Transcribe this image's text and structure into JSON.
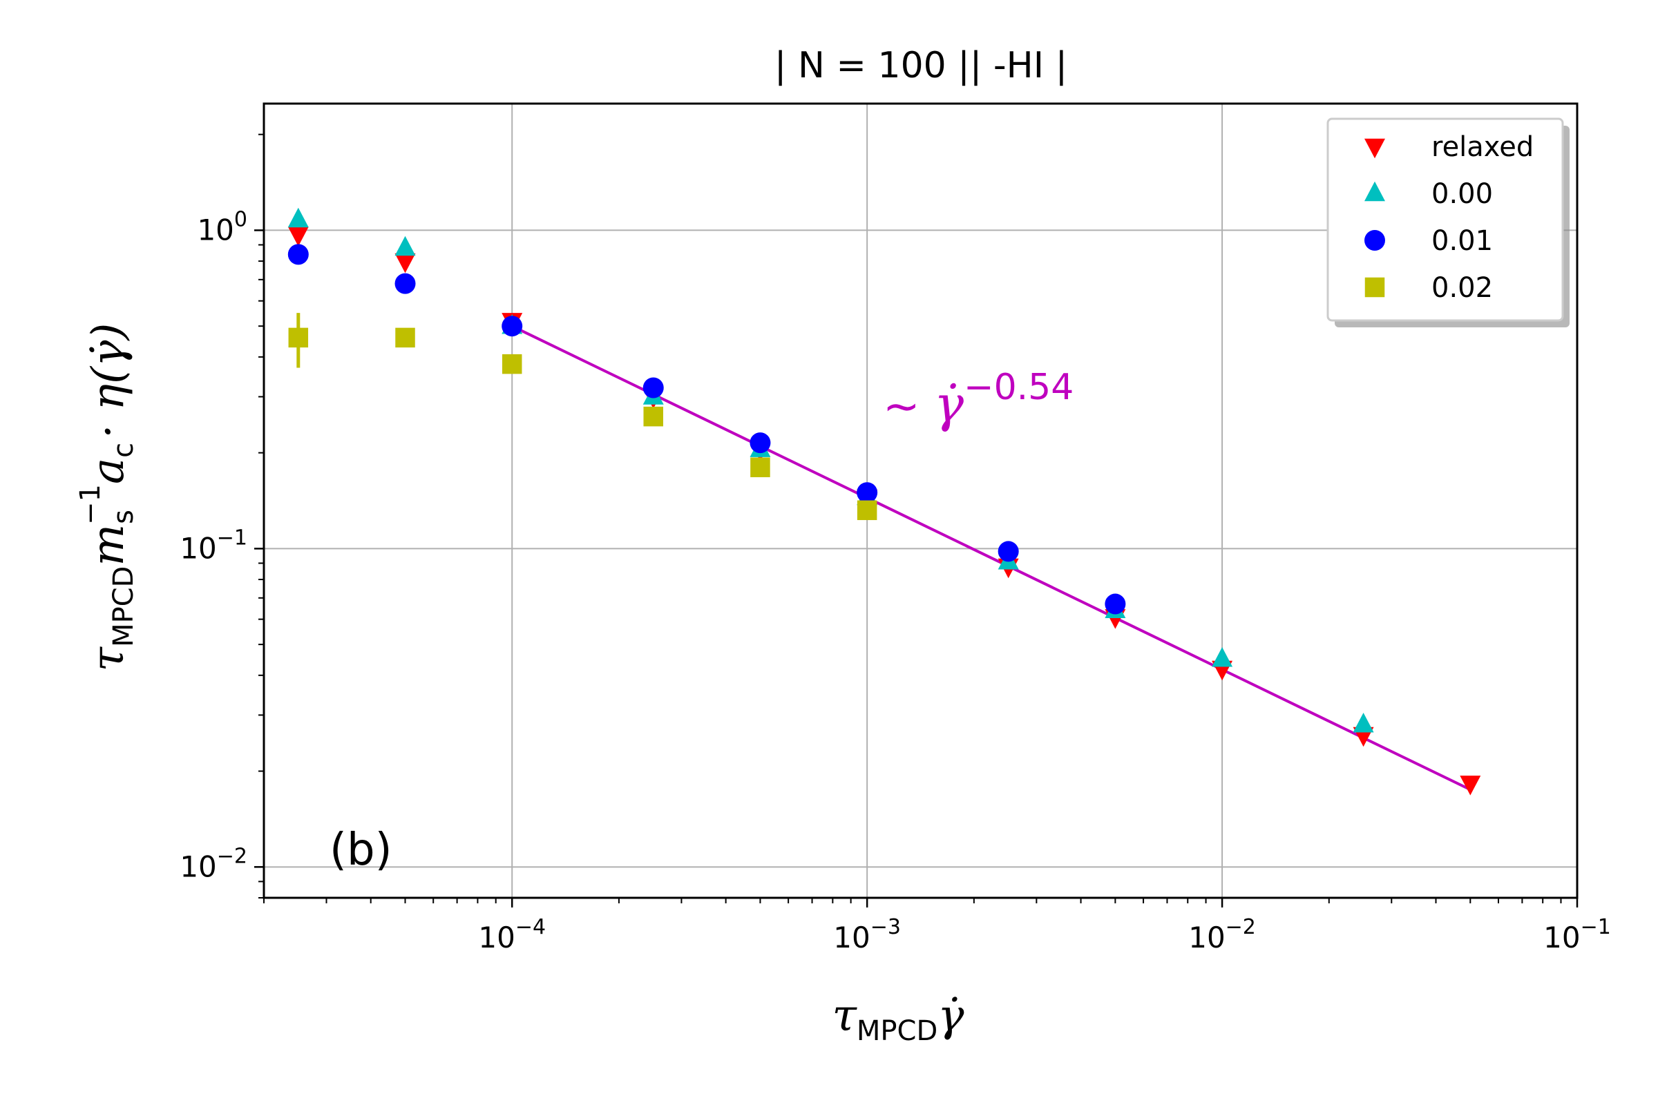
{
  "chart_data": {
    "type": "scatter",
    "title": "| N = 100 || -HI  |",
    "panel_label": "(b)",
    "xscale": "log",
    "yscale": "log",
    "xlim": [
      2e-05,
      0.1
    ],
    "ylim": [
      0.008,
      2.5
    ],
    "grid": true,
    "legend_position": "top-right",
    "xlabel": {
      "sym": "τ",
      "sub": "MPCD",
      "tail": "γ̇"
    },
    "ylabel": {
      "sym": "τ",
      "sub": "MPCD",
      "m": "m",
      "m_sub": "s",
      "m_sup": "−1",
      "a": "a",
      "a_sub": "c",
      "tail": "· η(γ̇)"
    },
    "x_ticks": [
      {
        "value": 0.0001,
        "base": "10",
        "exp": "−4"
      },
      {
        "value": 0.001,
        "base": "10",
        "exp": "−3"
      },
      {
        "value": 0.01,
        "base": "10",
        "exp": "−2"
      },
      {
        "value": 0.1,
        "base": "10",
        "exp": "−1"
      }
    ],
    "y_ticks": [
      {
        "value": 0.01,
        "base": "10",
        "exp": "−2"
      },
      {
        "value": 0.1,
        "base": "10",
        "exp": "−1"
      },
      {
        "value": 1,
        "base": "10",
        "exp": "0"
      }
    ],
    "series": [
      {
        "name": "relaxed",
        "marker": "triangle-down",
        "color": "#ff0000",
        "x": [
          2.5e-05,
          5e-05,
          0.0001,
          0.00025,
          0.0005,
          0.001,
          0.0025,
          0.005,
          0.01,
          0.025,
          0.05
        ],
        "y": [
          0.97,
          0.8,
          0.52,
          0.3,
          0.205,
          0.145,
          0.088,
          0.061,
          0.042,
          0.026,
          0.0183
        ]
      },
      {
        "name": "0.00",
        "marker": "triangle-up",
        "color": "#00bfbf",
        "x": [
          2.5e-05,
          5e-05,
          0.0001,
          0.00025,
          0.0005,
          0.001,
          0.0025,
          0.005,
          0.01,
          0.025
        ],
        "y": [
          1.08,
          0.88,
          0.5,
          0.3,
          0.205,
          0.145,
          0.091,
          0.064,
          0.045,
          0.028
        ]
      },
      {
        "name": "0.01",
        "marker": "circle",
        "color": "#0000ff",
        "x": [
          2.5e-05,
          5e-05,
          0.0001,
          0.00025,
          0.0005,
          0.001,
          0.0025,
          0.005
        ],
        "y": [
          0.84,
          0.68,
          0.5,
          0.32,
          0.215,
          0.15,
          0.098,
          0.067
        ]
      },
      {
        "name": "0.02",
        "marker": "square",
        "color": "#bfbf00",
        "x": [
          2.5e-05,
          5e-05,
          0.0001,
          0.00025,
          0.0005,
          0.001
        ],
        "y": [
          0.46,
          0.46,
          0.38,
          0.26,
          0.18,
          0.132
        ],
        "yerr": [
          0.09,
          0.02,
          0.0,
          0.0,
          0.0,
          0.0
        ]
      }
    ],
    "fit_line": {
      "color": "#bf00bf",
      "x": [
        0.0001,
        0.05
      ],
      "y": [
        0.5,
        0.0175
      ],
      "exponent": -0.54
    },
    "annotation": {
      "prefix": "∼ ",
      "symbol": "γ̇",
      "exponent": "−0.54",
      "color": "#bf00bf"
    }
  }
}
